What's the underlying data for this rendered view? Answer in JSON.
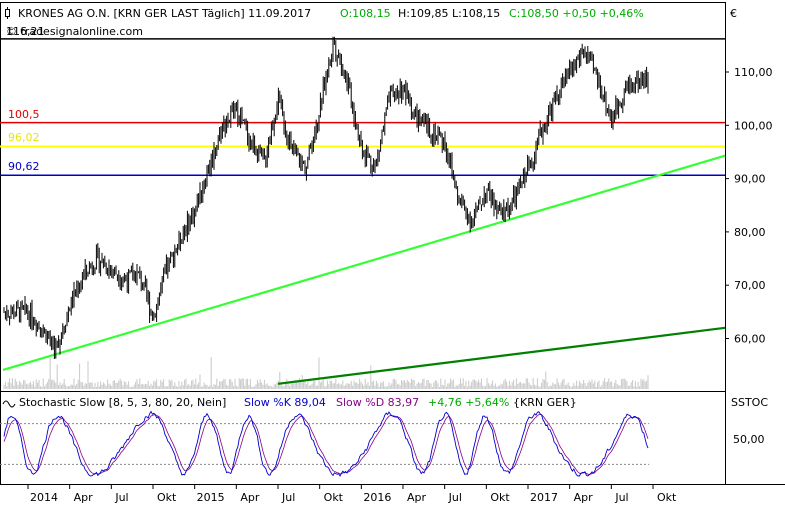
{
  "header": {
    "icon": "candlestick-icon",
    "instrument": "KRONES AG O.N. [KRN GER LAST Täglich] 11.09.2017",
    "open": "O:108,15",
    "hl": "H:109,85 L:108,15",
    "close": "C:108,50 +0,50 +0,46%",
    "currency": "€",
    "watermark": "© tradesignalonline.com",
    "top_level_label": "116,21"
  },
  "colors": {
    "price": "#000000",
    "red": "#e00000",
    "yellow": "#ffff00",
    "blue": "#0000c8",
    "green_light": "#33ff33",
    "green_dark": "#008000",
    "volume": "#c8c8c8",
    "stoch_k": "#0000cc",
    "stoch_d": "#880088",
    "positive": "#00aa00"
  },
  "stochastic": {
    "title": "Stochastic Slow [8, 5, 3, 80, 20, Nein]",
    "k_label": "Slow %K 89,04",
    "d_label": "Slow %D 83,97",
    "change": "+4,76 +5,64%",
    "instrument": "{KRN GER}",
    "panel_label": "SSTOC",
    "tick_label": "50,00"
  },
  "chart_data": {
    "type": "candlestick",
    "y_axis": {
      "ylim": [
        52,
        118
      ],
      "ticks": [
        "110,00",
        "100,00",
        "90,00",
        "80,00",
        "70,00",
        "60,00"
      ]
    },
    "x_axis": {
      "ticks": [
        "2014",
        "Apr",
        "Jul",
        "Okt",
        "2015",
        "Apr",
        "Jul",
        "Okt",
        "2016",
        "Apr",
        "Jul",
        "Okt",
        "2017",
        "Apr",
        "Jul",
        "Okt"
      ]
    },
    "horizontal_levels": [
      {
        "label": "116,21",
        "value": 116.21,
        "color": "#000000"
      },
      {
        "label": "100,5",
        "value": 100.5,
        "color": "#e00000"
      },
      {
        "label": "96,02",
        "value": 96.02,
        "color": "#ffff00"
      },
      {
        "label": "90,62",
        "value": 90.62,
        "color": "#0000c8"
      }
    ],
    "trendlines": [
      {
        "name": "",
        "color": "#33ff33",
        "from": [
          "2014-01",
          54.1
        ],
        "to": [
          "2017-12",
          94.3
        ]
      },
      {
        "name": "",
        "color": "#008000",
        "from": [
          "2015-07",
          51.5
        ],
        "to": [
          "2017-12",
          62.0
        ]
      }
    ],
    "price_path": [
      [
        "2014-01",
        65
      ],
      [
        "2014-02",
        62
      ],
      [
        "2014-03",
        58
      ],
      [
        "2014-04",
        66
      ],
      [
        "2014-05",
        72
      ],
      [
        "2014-06",
        75
      ],
      [
        "2014-07",
        73
      ],
      [
        "2014-08",
        71
      ],
      [
        "2014-09",
        72
      ],
      [
        "2014-10",
        64
      ],
      [
        "2014-11",
        73
      ],
      [
        "2014-12",
        79
      ],
      [
        "2015-01",
        84
      ],
      [
        "2015-02",
        92
      ],
      [
        "2015-03",
        100
      ],
      [
        "2015-04",
        103
      ],
      [
        "2015-05",
        97
      ],
      [
        "2015-06",
        93
      ],
      [
        "2015-07",
        105
      ],
      [
        "2015-08",
        95
      ],
      [
        "2015-09",
        92
      ],
      [
        "2015-10",
        103
      ],
      [
        "2015-11",
        116
      ],
      [
        "2015-12",
        108
      ],
      [
        "2016-01",
        96
      ],
      [
        "2016-02",
        92
      ],
      [
        "2016-03",
        105
      ],
      [
        "2016-04",
        107
      ],
      [
        "2016-05",
        101
      ],
      [
        "2016-06",
        99
      ],
      [
        "2016-07",
        97
      ],
      [
        "2016-08",
        86
      ],
      [
        "2016-09",
        82
      ],
      [
        "2016-10",
        88
      ],
      [
        "2016-11",
        83
      ],
      [
        "2016-12",
        86
      ],
      [
        "2017-01",
        92
      ],
      [
        "2017-02",
        99
      ],
      [
        "2017-03",
        105
      ],
      [
        "2017-04",
        110
      ],
      [
        "2017-05",
        114
      ],
      [
        "2017-06",
        109
      ],
      [
        "2017-07",
        101
      ],
      [
        "2017-08",
        107
      ],
      [
        "2017-09",
        108.5
      ]
    ],
    "stochastic_levels": [
      80,
      20
    ]
  }
}
